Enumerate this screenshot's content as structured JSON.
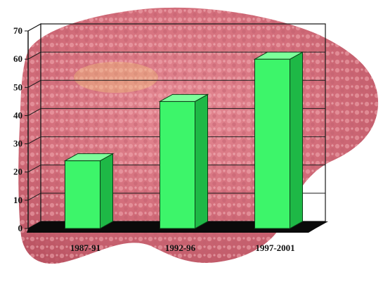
{
  "chart_data": {
    "type": "bar",
    "categories": [
      "1987-91",
      "1992-96",
      "1997-2001"
    ],
    "values": [
      24,
      45,
      60
    ],
    "ylim": [
      0,
      70
    ],
    "yticks": [
      "0",
      "10",
      "20",
      "30",
      "40",
      "50",
      "60",
      "70"
    ],
    "title": "",
    "xlabel": "",
    "ylabel": "",
    "grid": true,
    "legend": "none"
  },
  "colors": {
    "bar_front": "#3df56a",
    "bar_side": "#1eb846",
    "bar_top": "#7dff9b",
    "floor": "#0a0a0a",
    "grid": "#1a1a1a",
    "background_illustration": "liver-texture"
  }
}
